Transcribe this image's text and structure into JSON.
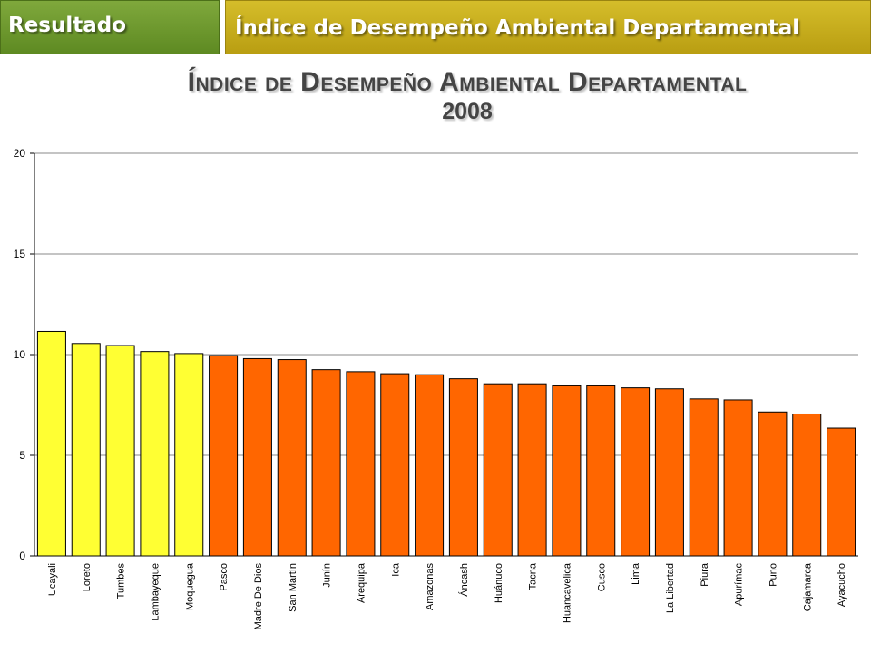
{
  "header": {
    "left_tab": "Resultado",
    "right_tab": "Índice de Desempeño Ambiental Departamental"
  },
  "colors": {
    "left_tab_bg": "#6e9a2e",
    "right_tab_bg": "#c7ad1e",
    "highlight_bar": "#ffff33",
    "default_bar": "#ff6600",
    "bar_outline": "#000000",
    "gridline": "#888888"
  },
  "chart_data": {
    "type": "bar",
    "title": "Índice de Desempeño Ambiental Departamental",
    "subtitle": "2008",
    "xlabel": "",
    "ylabel": "",
    "ylim": [
      0,
      20
    ],
    "yticks": [
      0,
      5,
      10,
      15,
      20
    ],
    "grid": true,
    "categories": [
      "Ucayali",
      "Loreto",
      "Tumbes",
      "Lambayeque",
      "Moquegua",
      "Pasco",
      "Madre De Dios",
      "San Martín",
      "Junín",
      "Arequipa",
      "Ica",
      "Amazonas",
      "Áncash",
      "Huánuco",
      "Tacna",
      "Huancavelica",
      "Cusco",
      "Lima",
      "La Libertad",
      "Piura",
      "Apurímac",
      "Puno",
      "Cajamarca",
      "Ayacucho"
    ],
    "values": [
      11.15,
      10.55,
      10.45,
      10.15,
      10.05,
      9.95,
      9.8,
      9.75,
      9.25,
      9.15,
      9.05,
      9.0,
      8.8,
      8.55,
      8.55,
      8.45,
      8.45,
      8.35,
      8.3,
      7.8,
      7.75,
      7.15,
      7.05,
      6.35
    ],
    "highlighted_count": 5
  }
}
